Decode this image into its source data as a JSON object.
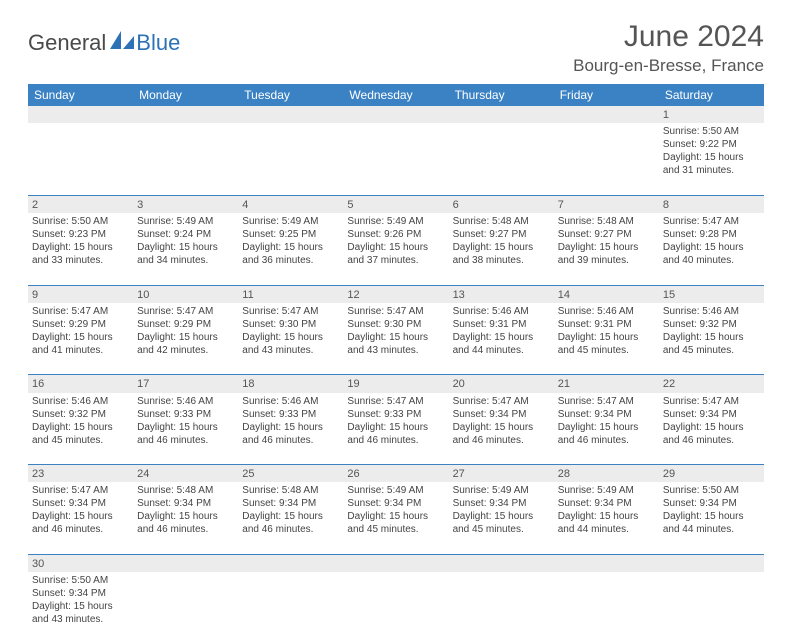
{
  "brand": {
    "part1": "General",
    "part2": "Blue"
  },
  "title": "June 2024",
  "location": "Bourg-en-Bresse, France",
  "colors": {
    "header_bg": "#3b82c4",
    "header_text": "#ffffff",
    "daynum_bg": "#ececec",
    "text": "#444444",
    "border": "#3b82c4",
    "brand_blue": "#2d72b5",
    "brand_gray": "#4a4a4a"
  },
  "weekdays": [
    "Sunday",
    "Monday",
    "Tuesday",
    "Wednesday",
    "Thursday",
    "Friday",
    "Saturday"
  ],
  "cells": {
    "d1": {
      "num": "1",
      "sunrise": "Sunrise: 5:50 AM",
      "sunset": "Sunset: 9:22 PM",
      "day1": "Daylight: 15 hours",
      "day2": "and 31 minutes."
    },
    "d2": {
      "num": "2",
      "sunrise": "Sunrise: 5:50 AM",
      "sunset": "Sunset: 9:23 PM",
      "day1": "Daylight: 15 hours",
      "day2": "and 33 minutes."
    },
    "d3": {
      "num": "3",
      "sunrise": "Sunrise: 5:49 AM",
      "sunset": "Sunset: 9:24 PM",
      "day1": "Daylight: 15 hours",
      "day2": "and 34 minutes."
    },
    "d4": {
      "num": "4",
      "sunrise": "Sunrise: 5:49 AM",
      "sunset": "Sunset: 9:25 PM",
      "day1": "Daylight: 15 hours",
      "day2": "and 36 minutes."
    },
    "d5": {
      "num": "5",
      "sunrise": "Sunrise: 5:49 AM",
      "sunset": "Sunset: 9:26 PM",
      "day1": "Daylight: 15 hours",
      "day2": "and 37 minutes."
    },
    "d6": {
      "num": "6",
      "sunrise": "Sunrise: 5:48 AM",
      "sunset": "Sunset: 9:27 PM",
      "day1": "Daylight: 15 hours",
      "day2": "and 38 minutes."
    },
    "d7": {
      "num": "7",
      "sunrise": "Sunrise: 5:48 AM",
      "sunset": "Sunset: 9:27 PM",
      "day1": "Daylight: 15 hours",
      "day2": "and 39 minutes."
    },
    "d8": {
      "num": "8",
      "sunrise": "Sunrise: 5:47 AM",
      "sunset": "Sunset: 9:28 PM",
      "day1": "Daylight: 15 hours",
      "day2": "and 40 minutes."
    },
    "d9": {
      "num": "9",
      "sunrise": "Sunrise: 5:47 AM",
      "sunset": "Sunset: 9:29 PM",
      "day1": "Daylight: 15 hours",
      "day2": "and 41 minutes."
    },
    "d10": {
      "num": "10",
      "sunrise": "Sunrise: 5:47 AM",
      "sunset": "Sunset: 9:29 PM",
      "day1": "Daylight: 15 hours",
      "day2": "and 42 minutes."
    },
    "d11": {
      "num": "11",
      "sunrise": "Sunrise: 5:47 AM",
      "sunset": "Sunset: 9:30 PM",
      "day1": "Daylight: 15 hours",
      "day2": "and 43 minutes."
    },
    "d12": {
      "num": "12",
      "sunrise": "Sunrise: 5:47 AM",
      "sunset": "Sunset: 9:30 PM",
      "day1": "Daylight: 15 hours",
      "day2": "and 43 minutes."
    },
    "d13": {
      "num": "13",
      "sunrise": "Sunrise: 5:46 AM",
      "sunset": "Sunset: 9:31 PM",
      "day1": "Daylight: 15 hours",
      "day2": "and 44 minutes."
    },
    "d14": {
      "num": "14",
      "sunrise": "Sunrise: 5:46 AM",
      "sunset": "Sunset: 9:31 PM",
      "day1": "Daylight: 15 hours",
      "day2": "and 45 minutes."
    },
    "d15": {
      "num": "15",
      "sunrise": "Sunrise: 5:46 AM",
      "sunset": "Sunset: 9:32 PM",
      "day1": "Daylight: 15 hours",
      "day2": "and 45 minutes."
    },
    "d16": {
      "num": "16",
      "sunrise": "Sunrise: 5:46 AM",
      "sunset": "Sunset: 9:32 PM",
      "day1": "Daylight: 15 hours",
      "day2": "and 45 minutes."
    },
    "d17": {
      "num": "17",
      "sunrise": "Sunrise: 5:46 AM",
      "sunset": "Sunset: 9:33 PM",
      "day1": "Daylight: 15 hours",
      "day2": "and 46 minutes."
    },
    "d18": {
      "num": "18",
      "sunrise": "Sunrise: 5:46 AM",
      "sunset": "Sunset: 9:33 PM",
      "day1": "Daylight: 15 hours",
      "day2": "and 46 minutes."
    },
    "d19": {
      "num": "19",
      "sunrise": "Sunrise: 5:47 AM",
      "sunset": "Sunset: 9:33 PM",
      "day1": "Daylight: 15 hours",
      "day2": "and 46 minutes."
    },
    "d20": {
      "num": "20",
      "sunrise": "Sunrise: 5:47 AM",
      "sunset": "Sunset: 9:34 PM",
      "day1": "Daylight: 15 hours",
      "day2": "and 46 minutes."
    },
    "d21": {
      "num": "21",
      "sunrise": "Sunrise: 5:47 AM",
      "sunset": "Sunset: 9:34 PM",
      "day1": "Daylight: 15 hours",
      "day2": "and 46 minutes."
    },
    "d22": {
      "num": "22",
      "sunrise": "Sunrise: 5:47 AM",
      "sunset": "Sunset: 9:34 PM",
      "day1": "Daylight: 15 hours",
      "day2": "and 46 minutes."
    },
    "d23": {
      "num": "23",
      "sunrise": "Sunrise: 5:47 AM",
      "sunset": "Sunset: 9:34 PM",
      "day1": "Daylight: 15 hours",
      "day2": "and 46 minutes."
    },
    "d24": {
      "num": "24",
      "sunrise": "Sunrise: 5:48 AM",
      "sunset": "Sunset: 9:34 PM",
      "day1": "Daylight: 15 hours",
      "day2": "and 46 minutes."
    },
    "d25": {
      "num": "25",
      "sunrise": "Sunrise: 5:48 AM",
      "sunset": "Sunset: 9:34 PM",
      "day1": "Daylight: 15 hours",
      "day2": "and 46 minutes."
    },
    "d26": {
      "num": "26",
      "sunrise": "Sunrise: 5:49 AM",
      "sunset": "Sunset: 9:34 PM",
      "day1": "Daylight: 15 hours",
      "day2": "and 45 minutes."
    },
    "d27": {
      "num": "27",
      "sunrise": "Sunrise: 5:49 AM",
      "sunset": "Sunset: 9:34 PM",
      "day1": "Daylight: 15 hours",
      "day2": "and 45 minutes."
    },
    "d28": {
      "num": "28",
      "sunrise": "Sunrise: 5:49 AM",
      "sunset": "Sunset: 9:34 PM",
      "day1": "Daylight: 15 hours",
      "day2": "and 44 minutes."
    },
    "d29": {
      "num": "29",
      "sunrise": "Sunrise: 5:50 AM",
      "sunset": "Sunset: 9:34 PM",
      "day1": "Daylight: 15 hours",
      "day2": "and 44 minutes."
    },
    "d30": {
      "num": "30",
      "sunrise": "Sunrise: 5:50 AM",
      "sunset": "Sunset: 9:34 PM",
      "day1": "Daylight: 15 hours",
      "day2": "and 43 minutes."
    }
  },
  "layout": [
    [
      null,
      null,
      null,
      null,
      null,
      null,
      "d1"
    ],
    [
      "d2",
      "d3",
      "d4",
      "d5",
      "d6",
      "d7",
      "d8"
    ],
    [
      "d9",
      "d10",
      "d11",
      "d12",
      "d13",
      "d14",
      "d15"
    ],
    [
      "d16",
      "d17",
      "d18",
      "d19",
      "d20",
      "d21",
      "d22"
    ],
    [
      "d23",
      "d24",
      "d25",
      "d26",
      "d27",
      "d28",
      "d29"
    ],
    [
      "d30",
      null,
      null,
      null,
      null,
      null,
      null
    ]
  ]
}
